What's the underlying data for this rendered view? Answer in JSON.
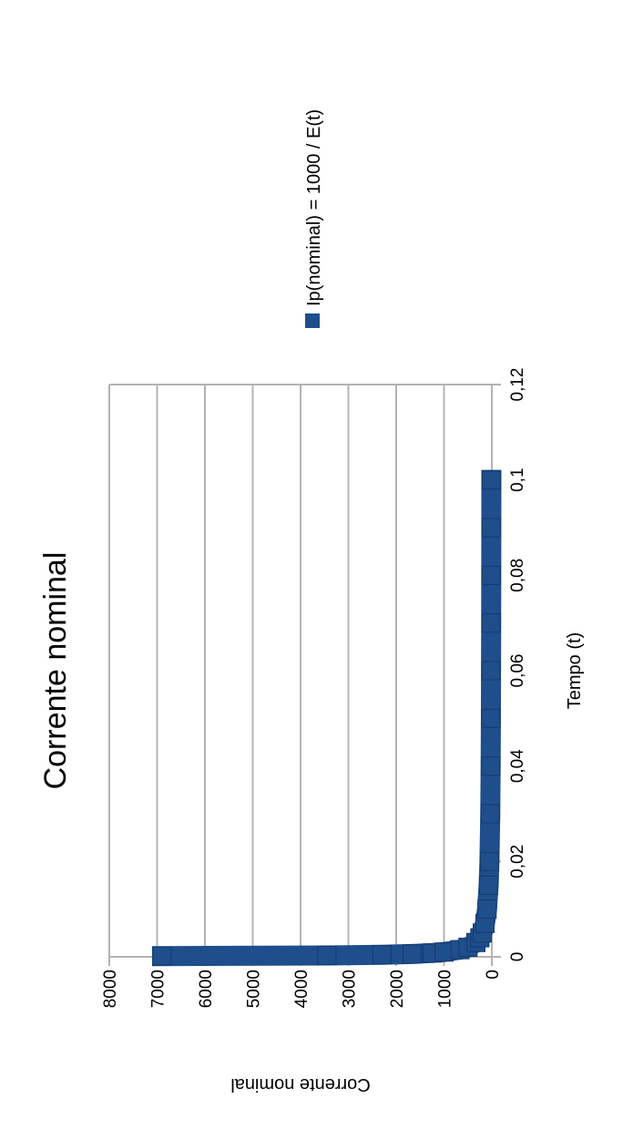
{
  "chart_data": {
    "type": "scatter",
    "title": "Corrente nominal",
    "xlabel": "Tempo (t)",
    "ylabel": "Corrente nominal",
    "xlim": [
      0,
      0.12
    ],
    "ylim": [
      0,
      8000
    ],
    "x_ticks": [
      "0",
      "0,02",
      "0,04",
      "0,06",
      "0,08",
      "0,1",
      "0,12"
    ],
    "y_ticks": [
      "0",
      "1000",
      "2000",
      "3000",
      "4000",
      "5000",
      "6000",
      "7000",
      "8000"
    ],
    "grid": true,
    "legend_position": "right",
    "rotation": "rotated 90 degrees counter-clockwise",
    "marker": "square",
    "series": [
      {
        "name": "Ip(nominal) = 1000 / E(t)",
        "color": "#1F4E8C",
        "formula": "1000 / E(t)",
        "x": [
          0.000145,
          0.00029,
          0.000435,
          0.0006,
          0.0008,
          0.001,
          0.0015,
          0.002,
          0.003,
          0.004,
          0.005,
          0.007,
          0.01,
          0.015,
          0.02,
          0.03,
          0.04,
          0.05,
          0.06,
          0.07,
          0.08,
          0.09,
          0.1
        ],
        "y": [
          6897,
          3448,
          2299,
          1667,
          1250,
          1000,
          667,
          500,
          333,
          250,
          200,
          143,
          100,
          67,
          50,
          33,
          25,
          20,
          17,
          14,
          12.5,
          11,
          10
        ]
      }
    ]
  }
}
